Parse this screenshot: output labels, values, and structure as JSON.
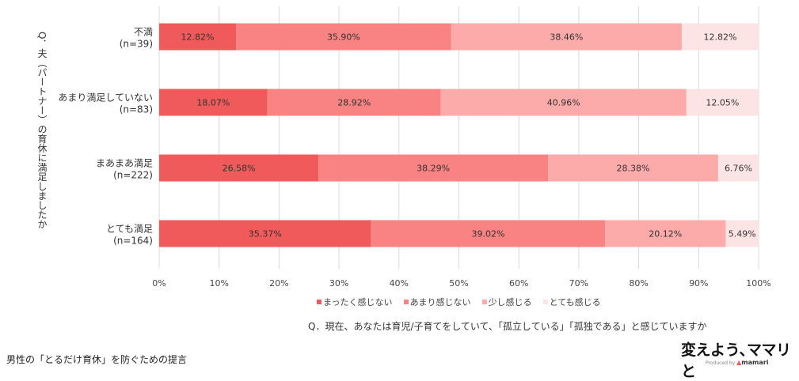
{
  "chart_data": {
    "type": "bar",
    "orientation": "horizontal",
    "stacked": true,
    "ylabel": "Q．夫（パートナー）の育休に満足しましたか",
    "xlabel": "Q．現在、あなたは育児/子育てをしていて、「孤立している」「孤独である」と感じていますか",
    "categories": [
      "不満\n(n=39)",
      "あまり満足していない\n(n=83)",
      "まあまあ満足\n(n=222)",
      "とても満足\n(n=164)"
    ],
    "category_lines": [
      [
        "不満",
        "(n=39)"
      ],
      [
        "あまり満足していない",
        "(n=83)"
      ],
      [
        "まあまあ満足",
        "(n=222)"
      ],
      [
        "とても満足",
        "(n=164)"
      ]
    ],
    "series": [
      {
        "name": "まったく感じない",
        "color": "#f05a5a",
        "values": [
          12.82,
          18.07,
          26.58,
          35.37
        ]
      },
      {
        "name": "あまり感じない",
        "color": "#f98282",
        "values": [
          35.9,
          28.92,
          38.29,
          39.02
        ]
      },
      {
        "name": "少し感じる",
        "color": "#fcaaaa",
        "values": [
          38.46,
          40.96,
          28.38,
          20.12
        ]
      },
      {
        "name": "とても感じる",
        "color": "#fde4e4",
        "values": [
          12.82,
          12.05,
          6.76,
          5.49
        ]
      }
    ],
    "xlim": [
      0,
      100
    ],
    "xticks": [
      "0%",
      "10%",
      "20%",
      "30%",
      "40%",
      "50%",
      "60%",
      "70%",
      "80%",
      "90%",
      "100%"
    ],
    "grid": true,
    "legend": "bottom"
  },
  "footer": "男性の「とるだけ育休」を防ぐための提言",
  "brand": {
    "tagline": "変えよう､ママリと",
    "produced_by": "Produced by",
    "logo": "mamari"
  }
}
